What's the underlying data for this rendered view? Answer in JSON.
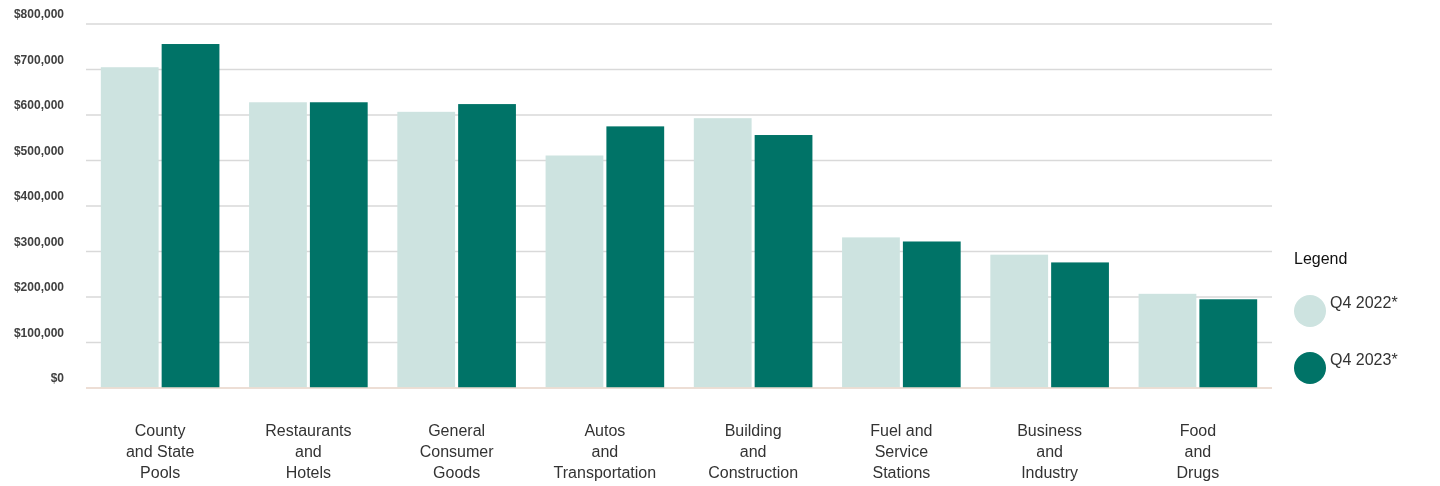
{
  "chart_data": {
    "type": "bar",
    "categories": [
      "County\nand State\nPools",
      "Restaurants\nand\nHotels",
      "General\nConsumer\nGoods",
      "Autos\nand\nTransportation",
      "Building\nand\nConstruction",
      "Fuel and\nService\nStations",
      "Business\nand\nIndustry",
      "Food\nand\nDrugs"
    ],
    "series": [
      {
        "name": "Q4 2022*",
        "color": "#cde3e0",
        "values": [
          705000,
          628000,
          607000,
          511000,
          593000,
          331000,
          293000,
          207000
        ]
      },
      {
        "name": "Q4 2023*",
        "color": "#007367",
        "values": [
          756000,
          628000,
          624000,
          575000,
          556000,
          322000,
          276000,
          195000
        ]
      }
    ],
    "ylim": [
      0,
      800000
    ],
    "yticks": [
      {
        "value": 0,
        "label": "$0"
      },
      {
        "value": 100000,
        "label": "$100,000"
      },
      {
        "value": 200000,
        "label": "$200,000"
      },
      {
        "value": 300000,
        "label": "$300,000"
      },
      {
        "value": 400000,
        "label": "$400,000"
      },
      {
        "value": 500000,
        "label": "$500,000"
      },
      {
        "value": 600000,
        "label": "$600,000"
      },
      {
        "value": 700000,
        "label": "$700,000"
      },
      {
        "value": 800000,
        "label": "$800,000"
      }
    ],
    "grid": "y",
    "legend": "right",
    "legend_title": "Legend"
  }
}
